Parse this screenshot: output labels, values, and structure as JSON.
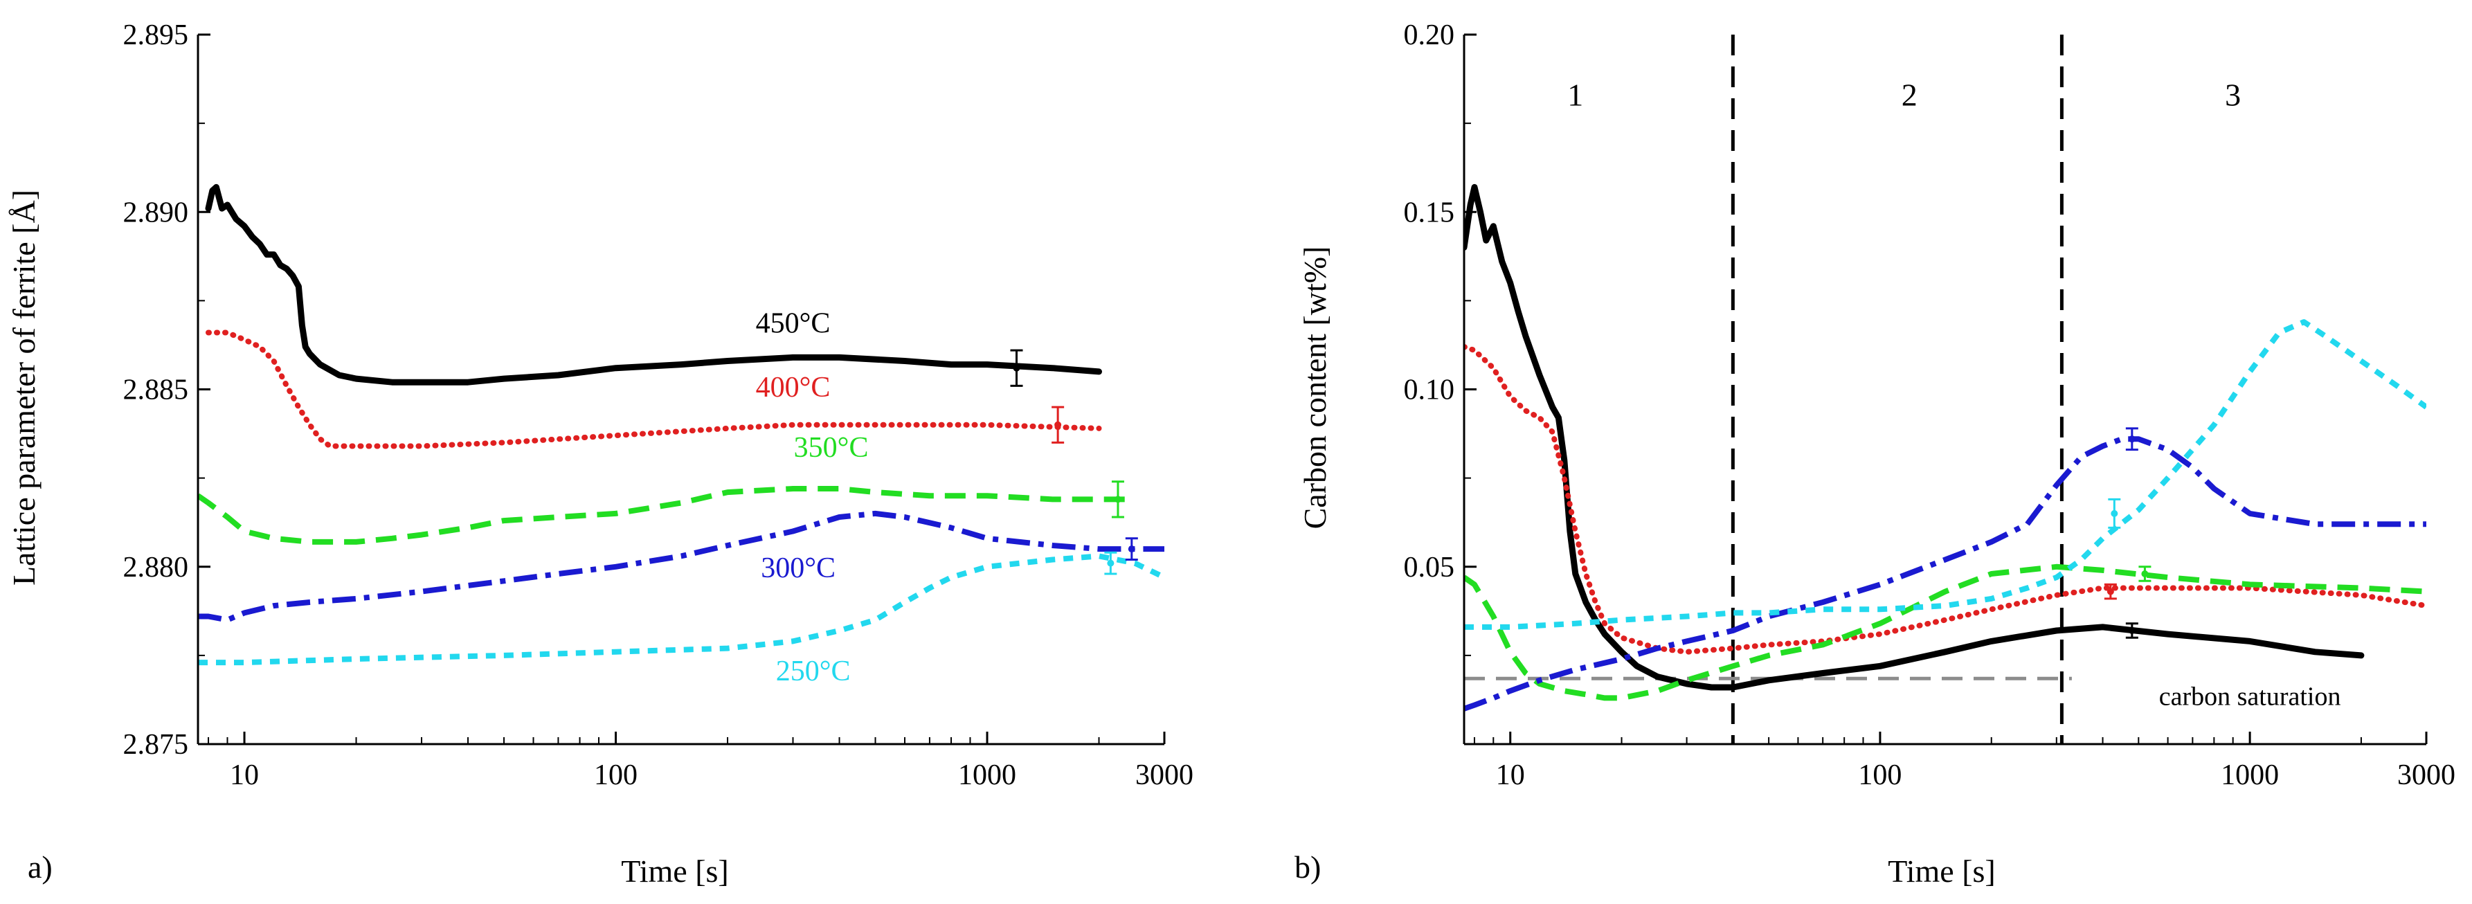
{
  "colors": {
    "450": "#000000",
    "400": "#e02020",
    "350": "#22dd22",
    "300": "#1a1ad0",
    "250": "#22d8ee",
    "saturation": "#8c8c8c"
  },
  "chart_data": [
    {
      "type": "line",
      "panel": "a)",
      "xlabel": "Time [s]",
      "ylabel": "Lattice parameter of ferrite [Å]",
      "xscale": "log",
      "xlim": [
        7.5,
        3000
      ],
      "ylim": [
        2.875,
        2.895
      ],
      "xticks": [
        {
          "v": 10,
          "label": "10"
        },
        {
          "v": 100,
          "label": "100"
        },
        {
          "v": 1000,
          "label": "1000"
        },
        {
          "v": 3000,
          "label": "3000"
        }
      ],
      "yticks": [
        {
          "v": 2.875,
          "label": "2.875"
        },
        {
          "v": 2.88,
          "label": "2.880"
        },
        {
          "v": 2.885,
          "label": "2.885"
        },
        {
          "v": 2.89,
          "label": "2.890"
        },
        {
          "v": 2.895,
          "label": "2.895"
        }
      ],
      "series": [
        {
          "name": "450°C",
          "color_key": "450",
          "dash": "solid",
          "x": [
            8,
            8.2,
            8.4,
            8.7,
            9,
            9.5,
            10,
            10.5,
            11,
            11.5,
            12,
            12.5,
            13,
            13.5,
            14,
            14.3,
            14.6,
            15,
            16,
            18,
            20,
            25,
            30,
            40,
            50,
            70,
            100,
            150,
            200,
            300,
            400,
            600,
            800,
            1000,
            1500,
            2000
          ],
          "y": [
            2.8901,
            2.8906,
            2.8907,
            2.8901,
            2.8902,
            2.8898,
            2.8896,
            2.8893,
            2.8891,
            2.8888,
            2.8888,
            2.8885,
            2.8884,
            2.8882,
            2.8879,
            2.8868,
            2.8862,
            2.886,
            2.8857,
            2.8854,
            2.8853,
            2.8852,
            2.8852,
            2.8852,
            2.8853,
            2.8854,
            2.8856,
            2.8857,
            2.8858,
            2.8859,
            2.8859,
            2.8858,
            2.8857,
            2.8857,
            2.8856,
            2.8855
          ],
          "label_at": {
            "x": 300,
            "y": 2.8866
          },
          "errorbar": {
            "x": 1200,
            "y": 2.8856,
            "err": 0.0005
          }
        },
        {
          "name": "400°C",
          "color_key": "400",
          "dash": "dot",
          "x": [
            8,
            9,
            10,
            11,
            12,
            13,
            14,
            15,
            16,
            17,
            18,
            20,
            25,
            30,
            50,
            100,
            200,
            300,
            500,
            1000,
            2000
          ],
          "y": [
            2.8866,
            2.8866,
            2.8864,
            2.8862,
            2.8858,
            2.8851,
            2.8845,
            2.884,
            2.8836,
            2.8834,
            2.8834,
            2.8834,
            2.8834,
            2.8834,
            2.8835,
            2.8837,
            2.8839,
            2.884,
            2.884,
            2.884,
            2.8839
          ],
          "label_at": {
            "x": 300,
            "y": 2.8848
          },
          "errorbar": {
            "x": 1550,
            "y": 2.884,
            "err": 0.0005
          }
        },
        {
          "name": "350°C",
          "color_key": "350",
          "dash": "dash",
          "x": [
            7.5,
            8,
            9,
            10,
            12,
            15,
            20,
            25,
            30,
            40,
            50,
            70,
            100,
            150,
            200,
            300,
            400,
            500,
            700,
            1000,
            1500,
            2000,
            2500
          ],
          "y": [
            2.882,
            2.8818,
            2.8814,
            2.881,
            2.8808,
            2.8807,
            2.8807,
            2.8808,
            2.8809,
            2.8811,
            2.8813,
            2.8814,
            2.8815,
            2.8818,
            2.8821,
            2.8822,
            2.8822,
            2.8821,
            2.882,
            2.882,
            2.8819,
            2.8819,
            2.8819
          ],
          "label_at": {
            "x": 380,
            "y": 2.8831
          },
          "errorbar": {
            "x": 2250,
            "y": 2.8819,
            "err": 0.0005
          }
        },
        {
          "name": "300°C",
          "color_key": "300",
          "dash": "dashdot",
          "x": [
            7.5,
            8,
            9,
            10,
            12,
            15,
            20,
            30,
            50,
            70,
            100,
            150,
            200,
            300,
            400,
            500,
            600,
            800,
            1000,
            1500,
            2000,
            2500,
            3000
          ],
          "y": [
            2.8786,
            2.8786,
            2.8785,
            2.8787,
            2.8789,
            2.879,
            2.8791,
            2.8793,
            2.8796,
            2.8798,
            2.88,
            2.8803,
            2.8806,
            2.881,
            2.8814,
            2.8815,
            2.8814,
            2.8811,
            2.8808,
            2.8806,
            2.8805,
            2.8805,
            2.8805
          ],
          "label_at": {
            "x": 310,
            "y": 2.8797
          },
          "errorbar": {
            "x": 2450,
            "y": 2.8805,
            "err": 0.0003
          }
        },
        {
          "name": "250°C",
          "color_key": "250",
          "dash": "shortdash",
          "x": [
            7.5,
            10,
            20,
            50,
            100,
            200,
            300,
            400,
            500,
            600,
            700,
            800,
            1000,
            1500,
            2000,
            2500,
            3000
          ],
          "y": [
            2.8773,
            2.8773,
            2.8774,
            2.8775,
            2.8776,
            2.8777,
            2.8779,
            2.8782,
            2.8785,
            2.879,
            2.8794,
            2.8797,
            2.88,
            2.8802,
            2.8803,
            2.8801,
            2.8797
          ],
          "label_at": {
            "x": 340,
            "y": 2.8768
          },
          "errorbar": {
            "x": 2150,
            "y": 2.8801,
            "err": 0.0003
          }
        }
      ]
    },
    {
      "type": "line",
      "panel": "b)",
      "xlabel": "Time [s]",
      "ylabel": "Carbon content [wt%]",
      "xscale": "log",
      "xlim": [
        7.5,
        3000
      ],
      "ylim": [
        0,
        0.2
      ],
      "xticks": [
        {
          "v": 10,
          "label": "10"
        },
        {
          "v": 100,
          "label": "100"
        },
        {
          "v": 1000,
          "label": "1000"
        },
        {
          "v": 3000,
          "label": "3000"
        }
      ],
      "yticks": [
        {
          "v": 0.05,
          "label": "0.05"
        },
        {
          "v": 0.1,
          "label": "0.10"
        },
        {
          "v": 0.15,
          "label": "0.15"
        },
        {
          "v": 0.2,
          "label": "0.20"
        }
      ],
      "region_boundaries": [
        40,
        310
      ],
      "regions": [
        {
          "label": "1",
          "x": 15,
          "y": 0.18
        },
        {
          "label": "2",
          "x": 120,
          "y": 0.18
        },
        {
          "label": "3",
          "x": 900,
          "y": 0.18
        }
      ],
      "saturation": {
        "label": "carbon saturation",
        "y": 0.0185,
        "x_start": 7.5,
        "x_end": 330,
        "label_x": 1000,
        "label_y": 0.011
      },
      "series": [
        {
          "name": "450°C",
          "color_key": "450",
          "dash": "solid",
          "x": [
            7.5,
            7.8,
            8,
            8.3,
            8.6,
            9,
            9.5,
            10,
            10.5,
            11,
            12,
            13,
            13.5,
            14,
            14.5,
            15,
            16,
            17,
            18,
            20,
            22,
            25,
            30,
            35,
            40,
            50,
            70,
            100,
            150,
            200,
            300,
            400,
            600,
            1000,
            1500,
            2000
          ],
          "y": [
            0.14,
            0.152,
            0.157,
            0.15,
            0.142,
            0.146,
            0.136,
            0.13,
            0.122,
            0.115,
            0.104,
            0.095,
            0.092,
            0.08,
            0.06,
            0.048,
            0.04,
            0.035,
            0.031,
            0.026,
            0.022,
            0.019,
            0.017,
            0.016,
            0.016,
            0.018,
            0.02,
            0.022,
            0.026,
            0.029,
            0.032,
            0.033,
            0.031,
            0.029,
            0.026,
            0.025
          ],
          "errorbar": {
            "x": 480,
            "y": 0.032,
            "err": 0.002
          }
        },
        {
          "name": "400°C",
          "color_key": "400",
          "dash": "dot",
          "x": [
            7.5,
            8,
            9,
            10,
            11,
            12,
            13,
            14,
            15,
            16,
            17,
            18,
            20,
            25,
            30,
            40,
            50,
            70,
            100,
            150,
            200,
            300,
            400,
            600,
            1000,
            2000,
            3000
          ],
          "y": [
            0.112,
            0.111,
            0.106,
            0.098,
            0.094,
            0.092,
            0.088,
            0.075,
            0.06,
            0.048,
            0.04,
            0.034,
            0.03,
            0.027,
            0.026,
            0.027,
            0.028,
            0.029,
            0.031,
            0.035,
            0.038,
            0.042,
            0.044,
            0.044,
            0.044,
            0.042,
            0.039
          ],
          "errorbar": {
            "x": 420,
            "y": 0.043,
            "err": 0.002
          }
        },
        {
          "name": "350°C",
          "color_key": "350",
          "dash": "dash",
          "x": [
            7.5,
            8,
            9,
            10,
            11,
            12,
            14,
            16,
            18,
            20,
            25,
            30,
            40,
            50,
            70,
            100,
            150,
            200,
            300,
            400,
            600,
            1000,
            2000,
            3000
          ],
          "y": [
            0.047,
            0.045,
            0.036,
            0.026,
            0.02,
            0.017,
            0.015,
            0.014,
            0.013,
            0.013,
            0.015,
            0.018,
            0.022,
            0.025,
            0.028,
            0.034,
            0.043,
            0.048,
            0.05,
            0.049,
            0.047,
            0.045,
            0.044,
            0.043
          ],
          "errorbar": {
            "x": 520,
            "y": 0.048,
            "err": 0.002
          }
        },
        {
          "name": "300°C",
          "color_key": "300",
          "dash": "dashdot",
          "x": [
            7.5,
            8,
            9,
            10,
            12,
            15,
            20,
            25,
            30,
            40,
            50,
            70,
            100,
            150,
            200,
            250,
            300,
            350,
            400,
            450,
            500,
            600,
            700,
            800,
            1000,
            1500,
            2000,
            3000
          ],
          "y": [
            0.01,
            0.011,
            0.013,
            0.015,
            0.018,
            0.021,
            0.024,
            0.027,
            0.029,
            0.032,
            0.036,
            0.04,
            0.045,
            0.052,
            0.057,
            0.062,
            0.073,
            0.081,
            0.084,
            0.086,
            0.086,
            0.083,
            0.078,
            0.072,
            0.065,
            0.062,
            0.062,
            0.062
          ],
          "errorbar": {
            "x": 480,
            "y": 0.086,
            "err": 0.003
          }
        },
        {
          "name": "250°C",
          "color_key": "250",
          "dash": "shortdash",
          "x": [
            7.5,
            8,
            10,
            15,
            20,
            30,
            40,
            50,
            70,
            100,
            150,
            200,
            250,
            300,
            350,
            400,
            500,
            600,
            800,
            1000,
            1200,
            1400,
            1600,
            2000,
            2500,
            3000
          ],
          "y": [
            0.033,
            0.033,
            0.033,
            0.034,
            0.035,
            0.036,
            0.037,
            0.037,
            0.038,
            0.038,
            0.039,
            0.041,
            0.044,
            0.047,
            0.052,
            0.058,
            0.066,
            0.075,
            0.09,
            0.105,
            0.116,
            0.119,
            0.115,
            0.108,
            0.101,
            0.095
          ],
          "errorbar": {
            "x": 430,
            "y": 0.065,
            "err": 0.004
          }
        }
      ]
    }
  ]
}
